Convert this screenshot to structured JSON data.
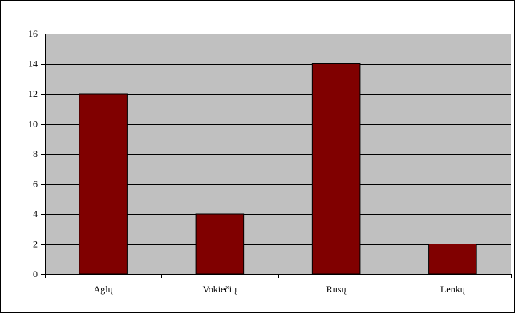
{
  "chart_data": {
    "type": "bar",
    "categories": [
      "Aglų",
      "Vokiečių",
      "Rusų",
      "Lenkų"
    ],
    "values": [
      12,
      4,
      14,
      2
    ],
    "title": "",
    "xlabel": "",
    "ylabel": "",
    "ylim": [
      0,
      16
    ],
    "yticks": [
      0,
      2,
      4,
      6,
      8,
      10,
      12,
      14,
      16
    ],
    "grid": true,
    "legend": "none",
    "colors": {
      "bar_fill": "#800000",
      "bar_stroke": "#000000",
      "plot_background": "#c0c0c0",
      "gridline": "#000000",
      "axis": "#000000"
    }
  }
}
